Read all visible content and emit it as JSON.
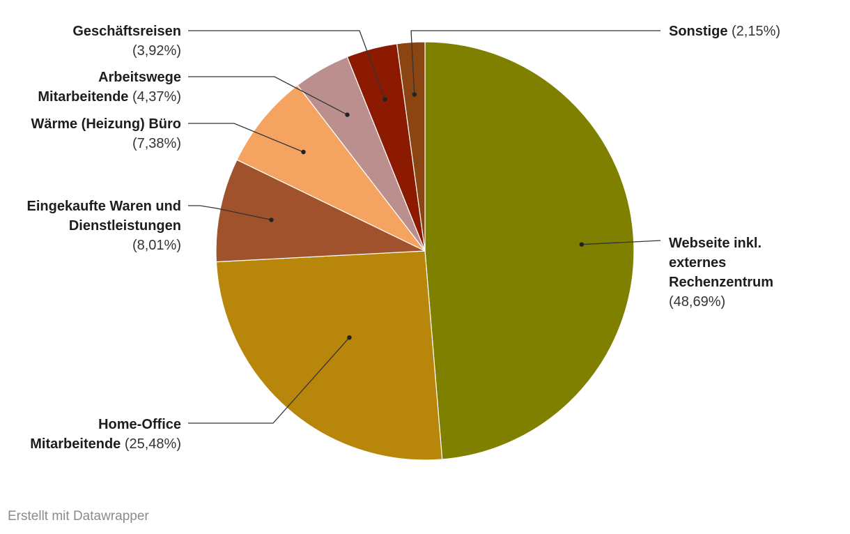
{
  "chart_data": {
    "type": "pie",
    "start_angle_deg": 0,
    "direction": "clockwise",
    "slices": [
      {
        "name": "Webseite inkl. externes Rechenzentrum",
        "value": 48.69,
        "value_label": "(48,69%)",
        "color": "#808000"
      },
      {
        "name": "Home-Office Mitarbeitende",
        "value": 25.48,
        "value_label": "(25,48%)",
        "color": "#b8860b"
      },
      {
        "name": "Eingekaufte Waren und Dienstleistungen",
        "value": 8.01,
        "value_label": "(8,01%)",
        "color": "#a0522d"
      },
      {
        "name": "Wärme (Heizung) Büro",
        "value": 7.38,
        "value_label": "(7,38%)",
        "color": "#f4a460"
      },
      {
        "name": "Arbeitswege Mitarbeitende",
        "value": 4.37,
        "value_label": "(4,37%)",
        "color": "#bc8f8f"
      },
      {
        "name": "Geschäftsreisen",
        "value": 3.92,
        "value_label": "(3,92%)",
        "color": "#8b1a00"
      },
      {
        "name": "Sonstige",
        "value": 2.15,
        "value_label": "(2,15%)",
        "color": "#8b4513"
      }
    ]
  },
  "footer": "Erstellt mit Datawrapper"
}
